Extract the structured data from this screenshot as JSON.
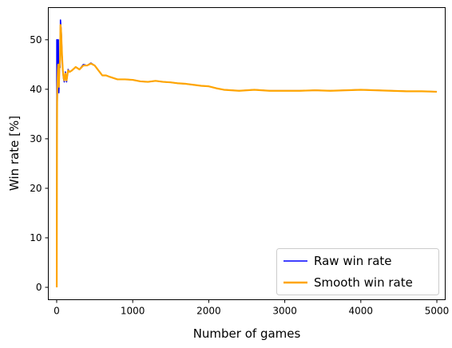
{
  "chart_data": {
    "type": "line",
    "title": "",
    "xlabel": "Number of games",
    "ylabel": "Win rate [%]",
    "xlim": [
      -110,
      5110
    ],
    "ylim": [
      -2.5,
      56.5
    ],
    "xticks": [
      0,
      1000,
      2000,
      3000,
      4000,
      5000
    ],
    "yticks": [
      0,
      10,
      20,
      30,
      40,
      50
    ],
    "grid": false,
    "legend_position": "lower-right",
    "series": [
      {
        "name": "Raw win rate",
        "color": "#0000ff",
        "x": [
          1,
          2,
          3,
          4,
          5,
          6,
          8,
          10,
          12,
          14,
          16,
          18,
          20,
          22,
          25,
          28,
          30,
          33,
          36,
          40,
          45,
          50,
          55,
          60,
          70,
          80,
          90,
          100,
          115,
          130,
          150,
          170,
          200,
          250,
          300,
          350,
          400,
          450,
          500,
          550,
          600,
          650,
          700,
          800,
          900,
          1000,
          1100,
          1200,
          1300,
          1400,
          1500,
          1600,
          1700,
          1800,
          1900,
          2000,
          2100,
          2200,
          2300,
          2400,
          2500,
          2600,
          2700,
          2800,
          2900,
          3000,
          3200,
          3400,
          3600,
          3800,
          4000,
          4200,
          4400,
          4600,
          4800,
          5000
        ],
        "y": [
          0,
          50,
          33.3,
          50,
          40,
          50,
          37.5,
          40,
          41.7,
          42.9,
          43.8,
          44.4,
          45,
          50,
          44,
          39.3,
          40,
          42.4,
          44.4,
          45,
          44.4,
          54,
          52.7,
          51.7,
          47.1,
          43.8,
          42.2,
          41.5,
          43.5,
          41.5,
          44,
          43.5,
          43.8,
          44.5,
          44,
          45,
          44.8,
          45.3,
          44.8,
          43.8,
          42.8,
          42.8,
          42.5,
          42,
          42,
          41.9,
          41.6,
          41.5,
          41.7,
          41.5,
          41.4,
          41.2,
          41.1,
          40.9,
          40.7,
          40.6,
          40.2,
          39.9,
          39.8,
          39.7,
          39.8,
          39.9,
          39.8,
          39.7,
          39.7,
          39.7,
          39.7,
          39.8,
          39.7,
          39.8,
          39.9,
          39.8,
          39.7,
          39.6,
          39.6,
          39.5
        ]
      },
      {
        "name": "Smooth win rate",
        "color": "#ffa500",
        "x": [
          1,
          2,
          3,
          4,
          5,
          6,
          8,
          10,
          12,
          14,
          16,
          18,
          20,
          22,
          25,
          28,
          30,
          33,
          36,
          40,
          45,
          50,
          55,
          60,
          70,
          80,
          90,
          100,
          115,
          130,
          150,
          170,
          200,
          250,
          300,
          350,
          400,
          450,
          500,
          550,
          600,
          650,
          700,
          800,
          900,
          1000,
          1100,
          1200,
          1300,
          1400,
          1500,
          1600,
          1700,
          1800,
          1900,
          2000,
          2100,
          2200,
          2300,
          2400,
          2500,
          2600,
          2700,
          2800,
          2900,
          3000,
          3200,
          3400,
          3600,
          3800,
          4000,
          4200,
          4400,
          4600,
          4800,
          5000
        ],
        "y": [
          0,
          10,
          20,
          30,
          35,
          38,
          40,
          41,
          42,
          43,
          44,
          44.5,
          45,
          44.5,
          42,
          40.5,
          41,
          42.5,
          44,
          44.8,
          46,
          53,
          52.5,
          51,
          47,
          44,
          42.5,
          41.8,
          43.2,
          41.8,
          43.8,
          43.5,
          43.8,
          44.5,
          44,
          44.8,
          44.8,
          45.2,
          44.8,
          43.8,
          42.8,
          42.8,
          42.5,
          42,
          42,
          41.9,
          41.6,
          41.5,
          41.7,
          41.5,
          41.4,
          41.2,
          41.1,
          40.9,
          40.7,
          40.6,
          40.2,
          39.9,
          39.8,
          39.7,
          39.8,
          39.9,
          39.8,
          39.7,
          39.7,
          39.7,
          39.7,
          39.8,
          39.7,
          39.8,
          39.9,
          39.8,
          39.7,
          39.6,
          39.6,
          39.5
        ]
      }
    ]
  }
}
